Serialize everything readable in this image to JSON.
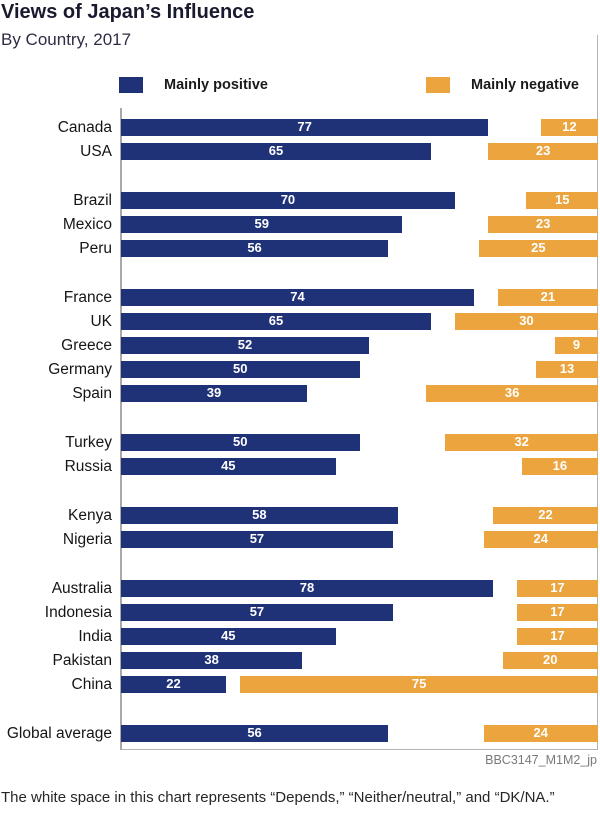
{
  "chart_data": {
    "type": "bar",
    "orientation": "horizontal-diverging",
    "title": "Views of Japan’s Influence",
    "subtitle": "By Country, 2017",
    "xlim": [
      0,
      100
    ],
    "grid": false,
    "legend_position": "top",
    "categories": [
      "Canada",
      "USA",
      "Brazil",
      "Mexico",
      "Peru",
      "France",
      "UK",
      "Greece",
      "Germany",
      "Spain",
      "Turkey",
      "Russia",
      "Kenya",
      "Nigeria",
      "Australia",
      "Indonesia",
      "India",
      "Pakistan",
      "China",
      "Global average"
    ],
    "series": [
      {
        "name": "Mainly positive",
        "color": "#1f3278",
        "anchor": "left",
        "values": [
          77,
          65,
          70,
          59,
          56,
          74,
          65,
          52,
          50,
          39,
          50,
          45,
          58,
          57,
          78,
          57,
          45,
          38,
          22,
          56
        ]
      },
      {
        "name": "Mainly negative",
        "color": "#eba43e",
        "anchor": "right",
        "values": [
          12,
          23,
          15,
          23,
          25,
          21,
          30,
          9,
          13,
          36,
          32,
          16,
          22,
          24,
          17,
          17,
          17,
          20,
          75,
          24
        ]
      }
    ],
    "group_breaks_after": [
      "USA",
      "Peru",
      "Spain",
      "Russia",
      "Nigeria",
      "China"
    ],
    "source_tag": "BBC3147_M1M2_jp",
    "note": "The white space in this chart represents “Depends,” “Neither/neutral,” and “DK/NA.”"
  },
  "colors": {
    "positive": "#1f3278",
    "negative": "#eba43e",
    "axis": "#a9a9a9",
    "border": "#b3b3b3"
  }
}
